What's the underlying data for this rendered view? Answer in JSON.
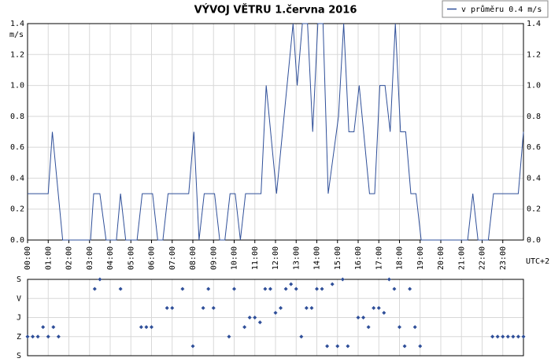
{
  "chart_data": [
    {
      "type": "line",
      "title": "VÝVOJ VĚTRU  1.června 2016",
      "y_label": "m/s",
      "annotation": "UTC+2",
      "legend": "top-right",
      "grid": true,
      "xlim": [
        0,
        24
      ],
      "xticks": [
        {
          "value": 0,
          "label": "00:00"
        },
        {
          "value": 1,
          "label": "01:00"
        },
        {
          "value": 2,
          "label": "02:00"
        },
        {
          "value": 3,
          "label": "03:00"
        },
        {
          "value": 4,
          "label": "04:00"
        },
        {
          "value": 5,
          "label": "05:00"
        },
        {
          "value": 6,
          "label": "06:00"
        },
        {
          "value": 7,
          "label": "07:00"
        },
        {
          "value": 8,
          "label": "08:00"
        },
        {
          "value": 9,
          "label": "09:00"
        },
        {
          "value": 10,
          "label": "10:00"
        },
        {
          "value": 11,
          "label": "11:00"
        },
        {
          "value": 12,
          "label": "12:00"
        },
        {
          "value": 13,
          "label": "13:00"
        },
        {
          "value": 14,
          "label": "14:00"
        },
        {
          "value": 15,
          "label": "15:00"
        },
        {
          "value": 16,
          "label": "16:00"
        },
        {
          "value": 17,
          "label": "17:00"
        },
        {
          "value": 18,
          "label": "18:00"
        },
        {
          "value": 19,
          "label": "19:00"
        },
        {
          "value": 20,
          "label": "20:00"
        },
        {
          "value": 21,
          "label": "21:00"
        },
        {
          "value": 22,
          "label": "22:00"
        },
        {
          "value": 23,
          "label": "23:00"
        }
      ],
      "ylim": [
        0,
        1.4
      ],
      "yticks": [
        {
          "value": 0,
          "label": "0.0"
        },
        0.2,
        0.4,
        0.6,
        0.8,
        {
          "value": 1,
          "label": "1.0"
        },
        1.2,
        1.4
      ],
      "x": [
        0,
        1,
        1.2,
        1.7,
        3.05,
        3.2,
        3.5,
        3.8,
        4.3,
        4.5,
        4.75,
        5.3,
        5.55,
        6.05,
        6.3,
        6.55,
        6.8,
        7.8,
        8.05,
        8.3,
        8.55,
        9.05,
        9.3,
        9.55,
        9.8,
        10.05,
        10.3,
        10.55,
        11.3,
        11.55,
        12.05,
        12.85,
        13.05,
        13.3,
        13.55,
        13.8,
        14.05,
        14.3,
        14.55,
        15.05,
        15.3,
        15.55,
        15.8,
        16.05,
        16.55,
        16.8,
        17.05,
        17.3,
        17.55,
        17.8,
        18.05,
        18.3,
        18.55,
        18.8,
        19.05,
        21.3,
        21.55,
        21.8,
        22.3,
        22.55,
        23.75,
        24
      ],
      "series": [
        {
          "name": "v průměru 0.4 m/s",
          "color": "#2f4f99",
          "values": [
            0.3,
            0.3,
            0.7,
            0,
            0,
            0.3,
            0.3,
            0,
            0,
            0.3,
            0,
            0,
            0.3,
            0.3,
            0,
            0,
            0.3,
            0.3,
            0.7,
            0,
            0.3,
            0.3,
            0,
            0,
            0.3,
            0.3,
            0,
            0.3,
            0.3,
            1.0,
            0.3,
            1.4,
            1.0,
            1.4,
            1.4,
            0.7,
            1.4,
            1.4,
            0.3,
            0.8,
            1.4,
            0.7,
            0.7,
            1.0,
            0.3,
            0.3,
            1.0,
            1.0,
            0.7,
            1.4,
            0.7,
            0.7,
            0.3,
            0.3,
            0,
            0,
            0.3,
            0,
            0,
            0.3,
            0.3,
            0.7
          ]
        }
      ]
    },
    {
      "type": "scatter",
      "grid": true,
      "y_inverted": true,
      "xlim": [
        0,
        24
      ],
      "ylim": [
        0,
        360
      ],
      "yticks": [
        {
          "value": 0,
          "label": "S"
        },
        {
          "value": 90,
          "label": "V"
        },
        {
          "value": 180,
          "label": "J"
        },
        {
          "value": 270,
          "label": "Z"
        },
        {
          "value": 360,
          "label": "S"
        }
      ],
      "x": [
        0,
        0.25,
        0.5,
        0.75,
        1,
        1.25,
        1.5,
        3.25,
        3.5,
        4.5,
        5.5,
        5.75,
        6,
        6.75,
        7,
        7.5,
        8,
        8.5,
        8.75,
        9,
        9.75,
        10,
        10.5,
        10.75,
        11,
        11.25,
        11.5,
        11.75,
        12,
        12.25,
        12.5,
        12.75,
        13,
        13.25,
        13.5,
        13.75,
        14,
        14.25,
        14.5,
        14.75,
        15,
        15.25,
        15.5,
        16,
        16.25,
        16.5,
        16.75,
        17,
        17.25,
        17.5,
        17.75,
        18,
        18.25,
        18.5,
        18.75,
        19,
        22.5,
        22.75,
        23,
        23.25,
        23.5,
        23.75,
        24
      ],
      "color": "#2f4f99",
      "values": [
        270,
        270,
        270,
        225,
        270,
        225,
        270,
        45,
        0,
        45,
        225,
        225,
        225,
        135,
        135,
        45,
        315,
        135,
        45,
        135,
        270,
        45,
        225,
        180,
        180,
        202.5,
        45,
        45,
        157.5,
        135,
        45,
        22.5,
        45,
        270,
        135,
        135,
        45,
        45,
        315,
        22.5,
        315,
        0,
        315,
        180,
        180,
        225,
        135,
        135,
        157.5,
        0,
        45,
        225,
        315,
        45,
        225,
        315,
        270,
        270,
        270,
        270,
        270,
        270,
        270
      ]
    }
  ]
}
